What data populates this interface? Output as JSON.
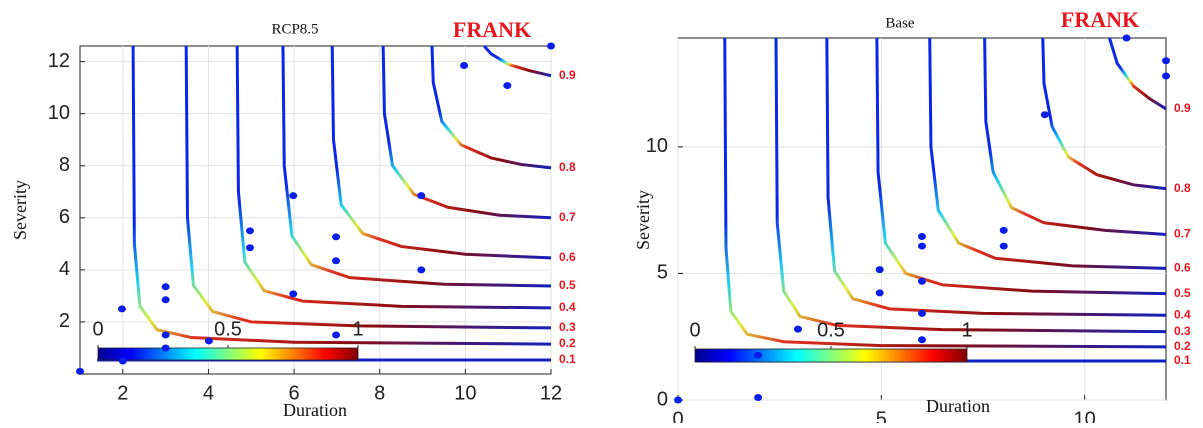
{
  "chart_data": [
    {
      "type": "contour",
      "title": "RCP8.5",
      "annotation": "FRANK",
      "xlabel": "Duration",
      "ylabel": "Severity",
      "xlim": [
        1,
        12
      ],
      "ylim": [
        0,
        12.6
      ],
      "xticks": [
        2,
        4,
        6,
        8,
        10,
        12
      ],
      "yticks": [
        2,
        4,
        6,
        8,
        10,
        12
      ],
      "grid": true,
      "colorbar": {
        "colormap": "jet",
        "lim": [
          0,
          1
        ],
        "ticks": [
          0,
          0.5,
          1
        ]
      },
      "contours": [
        {
          "level": 0.1,
          "x": [
            1.4,
            12
          ],
          "y": [
            0.54,
            0.54
          ]
        },
        {
          "level": 0.2,
          "x": [
            2.24,
            2.27,
            2.4,
            2.8,
            3.6,
            6,
            12
          ],
          "y": [
            12.6,
            5,
            2.6,
            1.7,
            1.4,
            1.22,
            1.15
          ]
        },
        {
          "level": 0.3,
          "x": [
            3.48,
            3.51,
            3.65,
            4.1,
            5,
            7.5,
            12
          ],
          "y": [
            12.6,
            6,
            3.4,
            2.4,
            2.0,
            1.85,
            1.77
          ]
        },
        {
          "level": 0.4,
          "x": [
            4.67,
            4.7,
            4.85,
            5.3,
            6.2,
            8.5,
            12
          ],
          "y": [
            12.6,
            7,
            4.3,
            3.2,
            2.8,
            2.6,
            2.54
          ]
        },
        {
          "level": 0.5,
          "x": [
            5.74,
            5.77,
            5.95,
            6.4,
            7.3,
            9.5,
            12
          ],
          "y": [
            12.6,
            8,
            5.3,
            4.2,
            3.7,
            3.45,
            3.38
          ]
        },
        {
          "level": 0.6,
          "x": [
            6.89,
            6.92,
            7.1,
            7.6,
            8.5,
            10,
            12
          ],
          "y": [
            12.6,
            9,
            6.5,
            5.4,
            4.9,
            4.6,
            4.46
          ]
        },
        {
          "level": 0.7,
          "x": [
            8.08,
            8.11,
            8.3,
            8.8,
            9.6,
            10.8,
            12
          ],
          "y": [
            12.6,
            10,
            8,
            6.9,
            6.4,
            6.1,
            6.0
          ]
        },
        {
          "level": 0.8,
          "x": [
            9.22,
            9.25,
            9.45,
            9.9,
            10.6,
            11.3,
            12
          ],
          "y": [
            12.6,
            11.2,
            9.7,
            8.8,
            8.3,
            8.05,
            7.92
          ]
        },
        {
          "level": 0.9,
          "x": [
            10.44,
            10.6,
            11,
            11.5,
            12
          ],
          "y": [
            12.6,
            12.3,
            11.9,
            11.65,
            11.46
          ]
        }
      ],
      "points": {
        "color": "#0a1ee8",
        "x": [
          1,
          1.98,
          2,
          3,
          3,
          3,
          3,
          4.01,
          4.97,
          4.97,
          5.98,
          5.98,
          6.98,
          6.98,
          6.98,
          8.97,
          8.97,
          9.97,
          10.98,
          12
        ],
        "y": [
          0.1,
          2.5,
          0.5,
          3.35,
          2.85,
          1.5,
          1.0,
          1.27,
          5.5,
          4.85,
          6.85,
          3.08,
          5.27,
          4.35,
          1.5,
          6.85,
          4.0,
          11.85,
          11.08,
          12.6
        ]
      }
    },
    {
      "type": "contour",
      "title": "Base",
      "annotation": "FRANK",
      "xlabel": "Duration",
      "ylabel": "Severity",
      "xlim": [
        0,
        12
      ],
      "ylim": [
        0,
        14.3
      ],
      "xticks": [
        0,
        5,
        10
      ],
      "yticks": [
        0,
        5,
        10
      ],
      "grid": true,
      "colorbar": {
        "colormap": "jet",
        "lim": [
          0,
          1
        ],
        "ticks": [
          0,
          0.5,
          1
        ]
      },
      "contours": [
        {
          "level": 0.1,
          "x": [
            0.5,
            12
          ],
          "y": [
            1.54,
            1.54
          ]
        },
        {
          "level": 0.2,
          "x": [
            1.15,
            1.18,
            1.3,
            1.7,
            2.6,
            5,
            12
          ],
          "y": [
            14.3,
            6,
            3.5,
            2.6,
            2.3,
            2.15,
            2.1
          ]
        },
        {
          "level": 0.3,
          "x": [
            2.41,
            2.44,
            2.6,
            3.0,
            3.9,
            6.5,
            12
          ],
          "y": [
            14.3,
            7,
            4.3,
            3.3,
            2.95,
            2.78,
            2.7
          ]
        },
        {
          "level": 0.4,
          "x": [
            3.66,
            3.69,
            3.85,
            4.3,
            5.2,
            7.5,
            12
          ],
          "y": [
            14.3,
            8,
            5.1,
            4.0,
            3.6,
            3.42,
            3.35
          ]
        },
        {
          "level": 0.5,
          "x": [
            4.89,
            4.92,
            5.1,
            5.6,
            6.5,
            8.7,
            12
          ],
          "y": [
            14.3,
            9,
            6.2,
            5.0,
            4.55,
            4.3,
            4.2
          ]
        },
        {
          "level": 0.6,
          "x": [
            6.19,
            6.22,
            6.4,
            6.9,
            7.8,
            9.7,
            12
          ],
          "y": [
            14.3,
            10,
            7.5,
            6.2,
            5.6,
            5.3,
            5.2
          ]
        },
        {
          "level": 0.7,
          "x": [
            7.54,
            7.57,
            7.75,
            8.2,
            9.0,
            10.5,
            12
          ],
          "y": [
            14.3,
            11,
            9,
            7.6,
            7.0,
            6.7,
            6.54
          ]
        },
        {
          "level": 0.8,
          "x": [
            8.97,
            9.0,
            9.2,
            9.6,
            10.3,
            11.2,
            12
          ],
          "y": [
            14.3,
            12.5,
            10.8,
            9.6,
            8.9,
            8.5,
            8.35
          ]
        },
        {
          "level": 0.9,
          "x": [
            10.61,
            10.8,
            11.2,
            11.6,
            12
          ],
          "y": [
            14.3,
            13.3,
            12.4,
            11.9,
            11.5
          ]
        }
      ],
      "points": {
        "color": "#0a1ee8",
        "x": [
          0,
          1.97,
          1.97,
          2.95,
          4.96,
          4.96,
          6.0,
          6.0,
          6.0,
          6.0,
          6.0,
          8.01,
          8.01,
          9.02,
          11.03,
          12,
          12
        ],
        "y": [
          0,
          1.77,
          0.1,
          2.8,
          5.15,
          4.23,
          6.46,
          6.08,
          4.69,
          3.42,
          2.38,
          6.7,
          6.08,
          11.27,
          14.3,
          13.4,
          12.8
        ]
      }
    }
  ]
}
